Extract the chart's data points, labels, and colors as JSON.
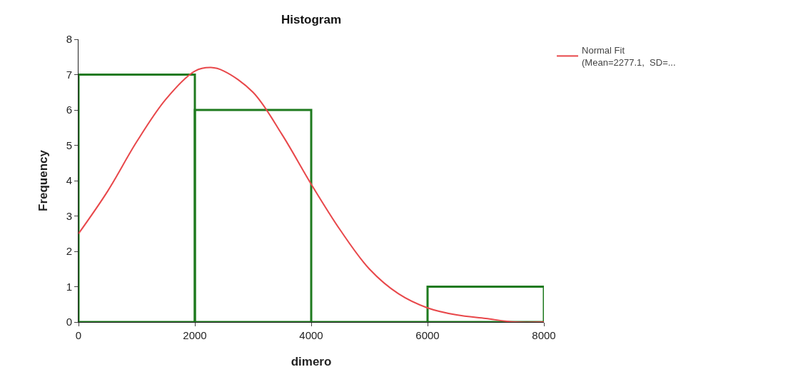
{
  "chart_data": {
    "type": "histogram",
    "title": "Histogram",
    "xlabel": "dimero",
    "ylabel": "Frequency",
    "bins": [
      0,
      2000,
      4000,
      6000,
      8000
    ],
    "series": [
      {
        "color": "#1e7a1e",
        "values": [
          7,
          6,
          0,
          1
        ]
      },
      {
        "type": "line",
        "name": "Normal Fit (Mean=2277.1,  SD=...",
        "color": "#e8474a",
        "x": [
          0,
          500,
          1000,
          1500,
          2000,
          2277,
          2500,
          3000,
          3500,
          4000,
          4500,
          5000,
          5500,
          6000,
          6500,
          7000,
          7500,
          8000
        ],
        "values": [
          2.5,
          3.7,
          5.1,
          6.3,
          7.1,
          7.2,
          7.1,
          6.5,
          5.3,
          3.9,
          2.6,
          1.5,
          0.8,
          0.4,
          0.2,
          0.1,
          0,
          0
        ]
      }
    ],
    "xlim": [
      0,
      8000
    ],
    "xticks": [
      0,
      2000,
      4000,
      6000,
      8000
    ],
    "ylim": [
      0,
      8
    ],
    "yticks": [
      0,
      1,
      2,
      3,
      4,
      5,
      6,
      7,
      8
    ],
    "grid": false,
    "legend": "top right",
    "marker": "none",
    "line_style": "solid"
  }
}
